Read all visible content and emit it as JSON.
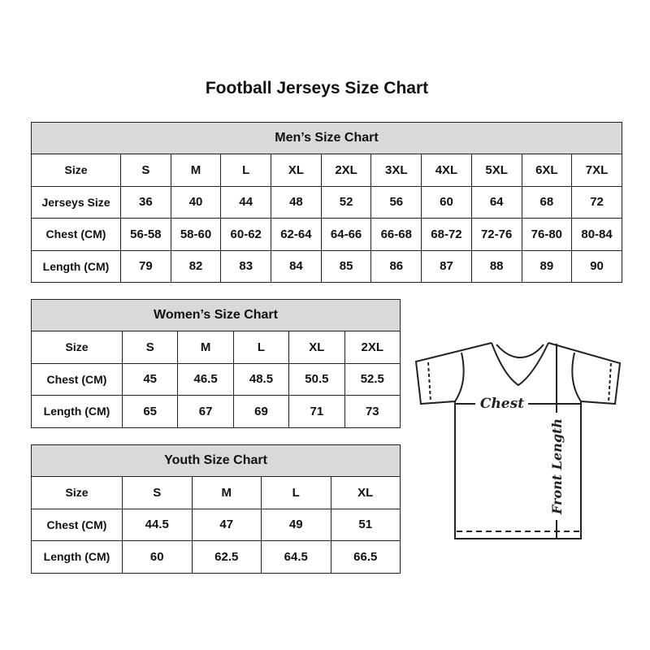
{
  "title": "Football Jerseys Size Chart",
  "men": {
    "caption": "Men’s Size Chart",
    "rows": [
      [
        "Size",
        "S",
        "M",
        "L",
        "XL",
        "2XL",
        "3XL",
        "4XL",
        "5XL",
        "6XL",
        "7XL"
      ],
      [
        "Jerseys Size",
        "36",
        "40",
        "44",
        "48",
        "52",
        "56",
        "60",
        "64",
        "68",
        "72"
      ],
      [
        "Chest (CM)",
        "56-58",
        "58-60",
        "60-62",
        "62-64",
        "64-66",
        "66-68",
        "68-72",
        "72-76",
        "76-80",
        "80-84"
      ],
      [
        "Length (CM)",
        "79",
        "82",
        "83",
        "84",
        "85",
        "86",
        "87",
        "88",
        "89",
        "90"
      ]
    ]
  },
  "women": {
    "caption": "Women’s Size Chart",
    "rows": [
      [
        "Size",
        "S",
        "M",
        "L",
        "XL",
        "2XL"
      ],
      [
        "Chest (CM)",
        "45",
        "46.5",
        "48.5",
        "50.5",
        "52.5"
      ],
      [
        "Length (CM)",
        "65",
        "67",
        "69",
        "71",
        "73"
      ]
    ]
  },
  "youth": {
    "caption": "Youth Size Chart",
    "rows": [
      [
        "Size",
        "S",
        "M",
        "L",
        "XL"
      ],
      [
        "Chest (CM)",
        "44.5",
        "47",
        "49",
        "51"
      ],
      [
        "Length (CM)",
        "60",
        "62.5",
        "64.5",
        "66.5"
      ]
    ]
  },
  "diagram": {
    "chest_label": "Chest",
    "length_label": "Front Length"
  }
}
